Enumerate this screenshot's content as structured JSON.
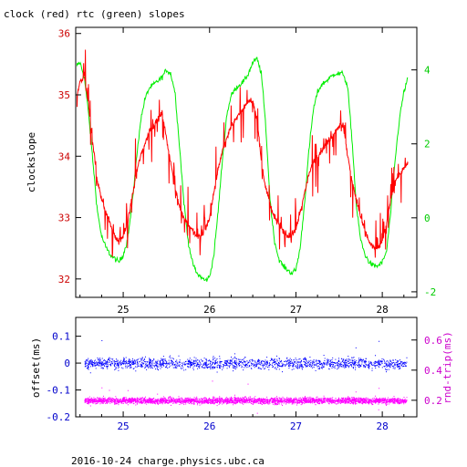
{
  "header": {
    "title": "clock (red) rtc (green) slopes",
    "footer": "2016-10-24 charge.physics.ubc.ca"
  },
  "colors": {
    "clock": "#ff0000",
    "rtc": "#00ee00",
    "offset": "#0000ff",
    "roundtrip": "#ff00ff",
    "axis": "#000000",
    "right_axis_top": "#00cc00",
    "left_axis_bottom": "#0000cc",
    "right_axis_bottom": "#cc00cc",
    "left_ticks_top": "#cc0000"
  },
  "chart_data": [
    {
      "type": "line",
      "ylabel": "clockslope",
      "xlim": [
        24.45,
        28.4
      ],
      "ylim": [
        31.7,
        36.1
      ],
      "y2lim": [
        -2.15,
        5.15
      ],
      "x_ticks": [
        25,
        26,
        27,
        28
      ],
      "y_ticks": [
        32,
        33,
        34,
        35,
        36
      ],
      "y2_ticks": [
        -2,
        0,
        2,
        4
      ],
      "series": [
        {
          "axis": "left",
          "x": [
            24.45,
            24.5,
            24.55,
            24.6,
            24.65,
            24.7,
            24.75,
            24.8,
            24.85,
            24.9,
            24.95,
            25.0,
            25.05,
            25.1,
            25.15,
            25.2,
            25.25,
            25.3,
            25.35,
            25.4,
            25.45,
            25.5,
            25.55,
            25.6,
            25.65,
            25.7,
            25.75,
            25.8,
            25.85,
            25.9,
            25.95,
            26.0,
            26.05,
            26.1,
            26.15,
            26.2,
            26.25,
            26.3,
            26.35,
            26.4,
            26.45,
            26.5,
            26.55,
            26.6,
            26.65,
            26.7,
            26.75,
            26.8,
            26.85,
            26.9,
            26.95,
            27.0,
            27.05,
            27.1,
            27.15,
            27.2,
            27.25,
            27.3,
            27.35,
            27.4,
            27.45,
            27.5,
            27.55,
            27.6,
            27.65,
            27.7,
            27.75,
            27.8,
            27.85,
            27.9,
            27.95,
            28.0,
            28.05,
            28.1,
            28.15,
            28.2,
            28.25,
            28.3
          ],
          "values": [
            34.9,
            35.2,
            35.3,
            34.8,
            34.2,
            33.6,
            33.3,
            33.1,
            32.9,
            32.7,
            32.6,
            32.7,
            32.9,
            33.3,
            33.7,
            34.0,
            34.2,
            34.4,
            34.5,
            34.6,
            34.7,
            34.3,
            33.9,
            33.5,
            33.2,
            33.0,
            32.9,
            32.8,
            32.7,
            32.7,
            32.8,
            33.0,
            33.4,
            33.8,
            34.1,
            34.3,
            34.5,
            34.6,
            34.7,
            34.8,
            34.9,
            34.9,
            34.6,
            33.9,
            33.5,
            33.2,
            33.0,
            32.9,
            32.8,
            32.7,
            32.7,
            32.8,
            33.1,
            33.4,
            33.7,
            33.9,
            34.0,
            34.1,
            34.2,
            34.3,
            34.4,
            34.5,
            34.5,
            34.0,
            33.6,
            33.3,
            33.0,
            32.8,
            32.6,
            32.5,
            32.5,
            32.6,
            32.9,
            33.3,
            33.6,
            33.7,
            33.8,
            33.9
          ]
        },
        {
          "axis": "right",
          "x": [
            24.45,
            24.5,
            24.55,
            24.6,
            24.65,
            24.7,
            24.75,
            24.8,
            24.85,
            24.9,
            24.95,
            25.0,
            25.05,
            25.1,
            25.15,
            25.2,
            25.25,
            25.3,
            25.35,
            25.4,
            25.45,
            25.5,
            25.55,
            25.6,
            25.65,
            25.7,
            25.75,
            25.8,
            25.85,
            25.9,
            25.95,
            26.0,
            26.05,
            26.1,
            26.15,
            26.2,
            26.25,
            26.3,
            26.35,
            26.4,
            26.45,
            26.5,
            26.55,
            26.6,
            26.65,
            26.7,
            26.75,
            26.8,
            26.85,
            26.9,
            26.95,
            27.0,
            27.05,
            27.1,
            27.15,
            27.2,
            27.25,
            27.3,
            27.35,
            27.4,
            27.45,
            27.5,
            27.55,
            27.6,
            27.65,
            27.7,
            27.75,
            27.8,
            27.85,
            27.9,
            27.95,
            28.0,
            28.05,
            28.1,
            28.15,
            28.2,
            28.25,
            28.3
          ],
          "values": [
            4.1,
            4.2,
            3.8,
            2.8,
            1.5,
            0.2,
            -0.5,
            -0.8,
            -1.0,
            -1.1,
            -1.2,
            -1.0,
            -0.6,
            0.3,
            1.5,
            2.6,
            3.2,
            3.5,
            3.6,
            3.7,
            3.8,
            4.0,
            3.9,
            3.4,
            2.0,
            0.5,
            -0.6,
            -1.2,
            -1.5,
            -1.6,
            -1.7,
            -1.6,
            -1.0,
            0.2,
            1.6,
            2.8,
            3.3,
            3.5,
            3.6,
            3.7,
            3.9,
            4.2,
            4.3,
            3.9,
            2.5,
            0.5,
            -0.6,
            -1.1,
            -1.3,
            -1.4,
            -1.5,
            -1.4,
            -0.8,
            0.4,
            1.8,
            2.9,
            3.4,
            3.6,
            3.7,
            3.8,
            3.9,
            3.9,
            3.9,
            3.5,
            2.1,
            0.3,
            -0.6,
            -1.0,
            -1.2,
            -1.3,
            -1.3,
            -1.2,
            -0.9,
            0.2,
            1.6,
            2.7,
            3.4,
            3.8
          ]
        }
      ]
    },
    {
      "type": "scatter",
      "ylabel": "offset(ms)",
      "y2label": "rnd-trip(ms)",
      "xlim": [
        24.45,
        28.4
      ],
      "ylim": [
        -0.2,
        0.17
      ],
      "y2lim": [
        0.09,
        0.75
      ],
      "x_ticks": [
        25,
        26,
        27,
        28
      ],
      "y_ticks": [
        -0.2,
        -0.1,
        0,
        0.1
      ],
      "y_tick_labels": [
        "-0.2",
        "-0.1",
        "0",
        "0.1"
      ],
      "y2_ticks": [
        0.2,
        0.4,
        0.6
      ],
      "x_range_data": [
        24.55,
        28.28
      ],
      "series": [
        {
          "axis": "left",
          "center": 0.0,
          "spread": 0.035
        },
        {
          "axis": "right",
          "center": 0.2,
          "spread": 0.035
        }
      ]
    }
  ]
}
